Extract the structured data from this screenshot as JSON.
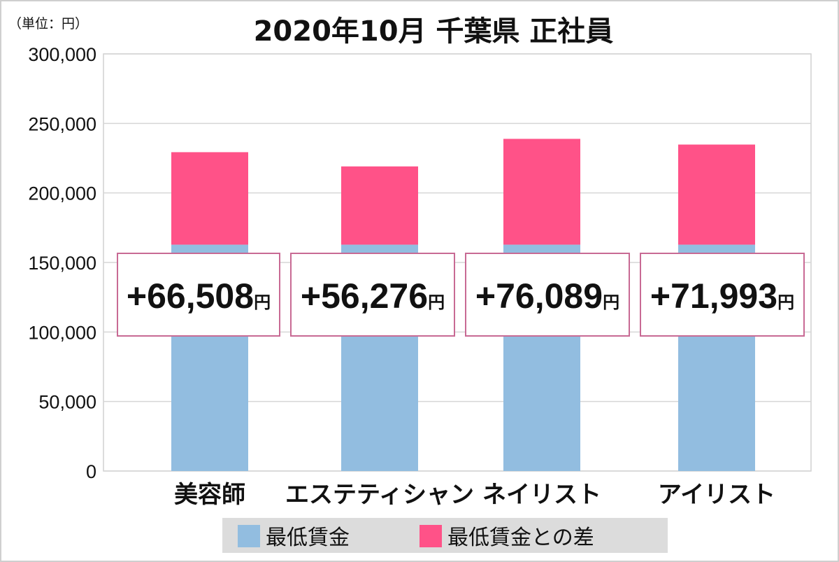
{
  "chart_data": {
    "type": "bar",
    "stacked": true,
    "title": "2020年10月 千葉県 正社員",
    "unit_label": "（単位：円）",
    "categories": [
      "美容師",
      "エステティシャン",
      "ネイリスト",
      "アイリスト"
    ],
    "series": [
      {
        "name": "最低賃金",
        "color": "#92bde0",
        "values": [
          162800,
          162800,
          162800,
          162800
        ]
      },
      {
        "name": "最低賃金との差",
        "color": "#ff5288",
        "values": [
          66508,
          56276,
          76089,
          71993
        ]
      }
    ],
    "data_labels": [
      "+66,508",
      "+56,276",
      "+76,089",
      "+71,993"
    ],
    "data_label_suffix": "円",
    "ylim": [
      0,
      300000
    ],
    "yticks": [
      0,
      50000,
      100000,
      150000,
      200000,
      250000,
      300000
    ],
    "ytick_labels": [
      "0",
      "50,000",
      "100,000",
      "150,000",
      "200,000",
      "250,000",
      "300,000"
    ],
    "grid": true,
    "legend_position": "bottom"
  }
}
